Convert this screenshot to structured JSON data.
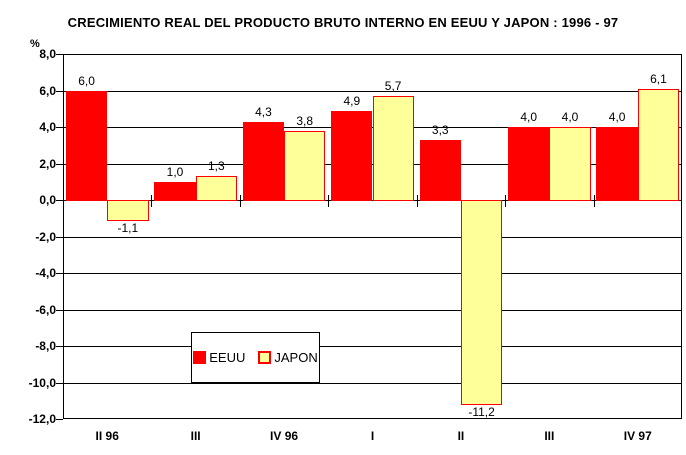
{
  "title": "CRECIMIENTO REAL DEL PRODUCTO BRUTO INTERNO EN EEUU Y JAPON : 1996 - 97",
  "y_axis": {
    "unit_label": "%",
    "tick_labels": [
      "8,0",
      "6,0",
      "4,0",
      "2,0",
      "0,0",
      "-2,0",
      "-4,0",
      "-6,0",
      "-8,0",
      "-10,0",
      "-12,0"
    ]
  },
  "chart_data": {
    "type": "bar",
    "title": "CRECIMIENTO REAL DEL PRODUCTO BRUTO INTERNO EN EEUU Y JAPON : 1996 - 97",
    "xlabel": "",
    "ylabel": "%",
    "ylim": [
      -12,
      8
    ],
    "grid": true,
    "grid_step": 2,
    "legend_position": "inside-left-middle",
    "categories": [
      "II 96",
      "III",
      "IV 96",
      "I",
      "II",
      "III",
      "IV 97"
    ],
    "series": [
      {
        "name": "EEUU",
        "fill_color": "#FF0000",
        "border_color": "#FF0000",
        "values": [
          6.0,
          1.0,
          4.3,
          4.9,
          3.3,
          4.0,
          4.0
        ],
        "value_labels": [
          "6,0",
          "1,0",
          "4,3",
          "4,9",
          "3,3",
          "4,0",
          "4,0"
        ]
      },
      {
        "name": "JAPON",
        "fill_color": "#FFFF99",
        "border_color": "#FF0000",
        "values": [
          -1.1,
          1.3,
          3.8,
          5.7,
          -11.2,
          4.0,
          6.1
        ],
        "value_labels": [
          "-1,1",
          "1,3",
          "3,8",
          "5,7",
          "-11,2",
          "4,0",
          "6,1"
        ]
      }
    ]
  }
}
